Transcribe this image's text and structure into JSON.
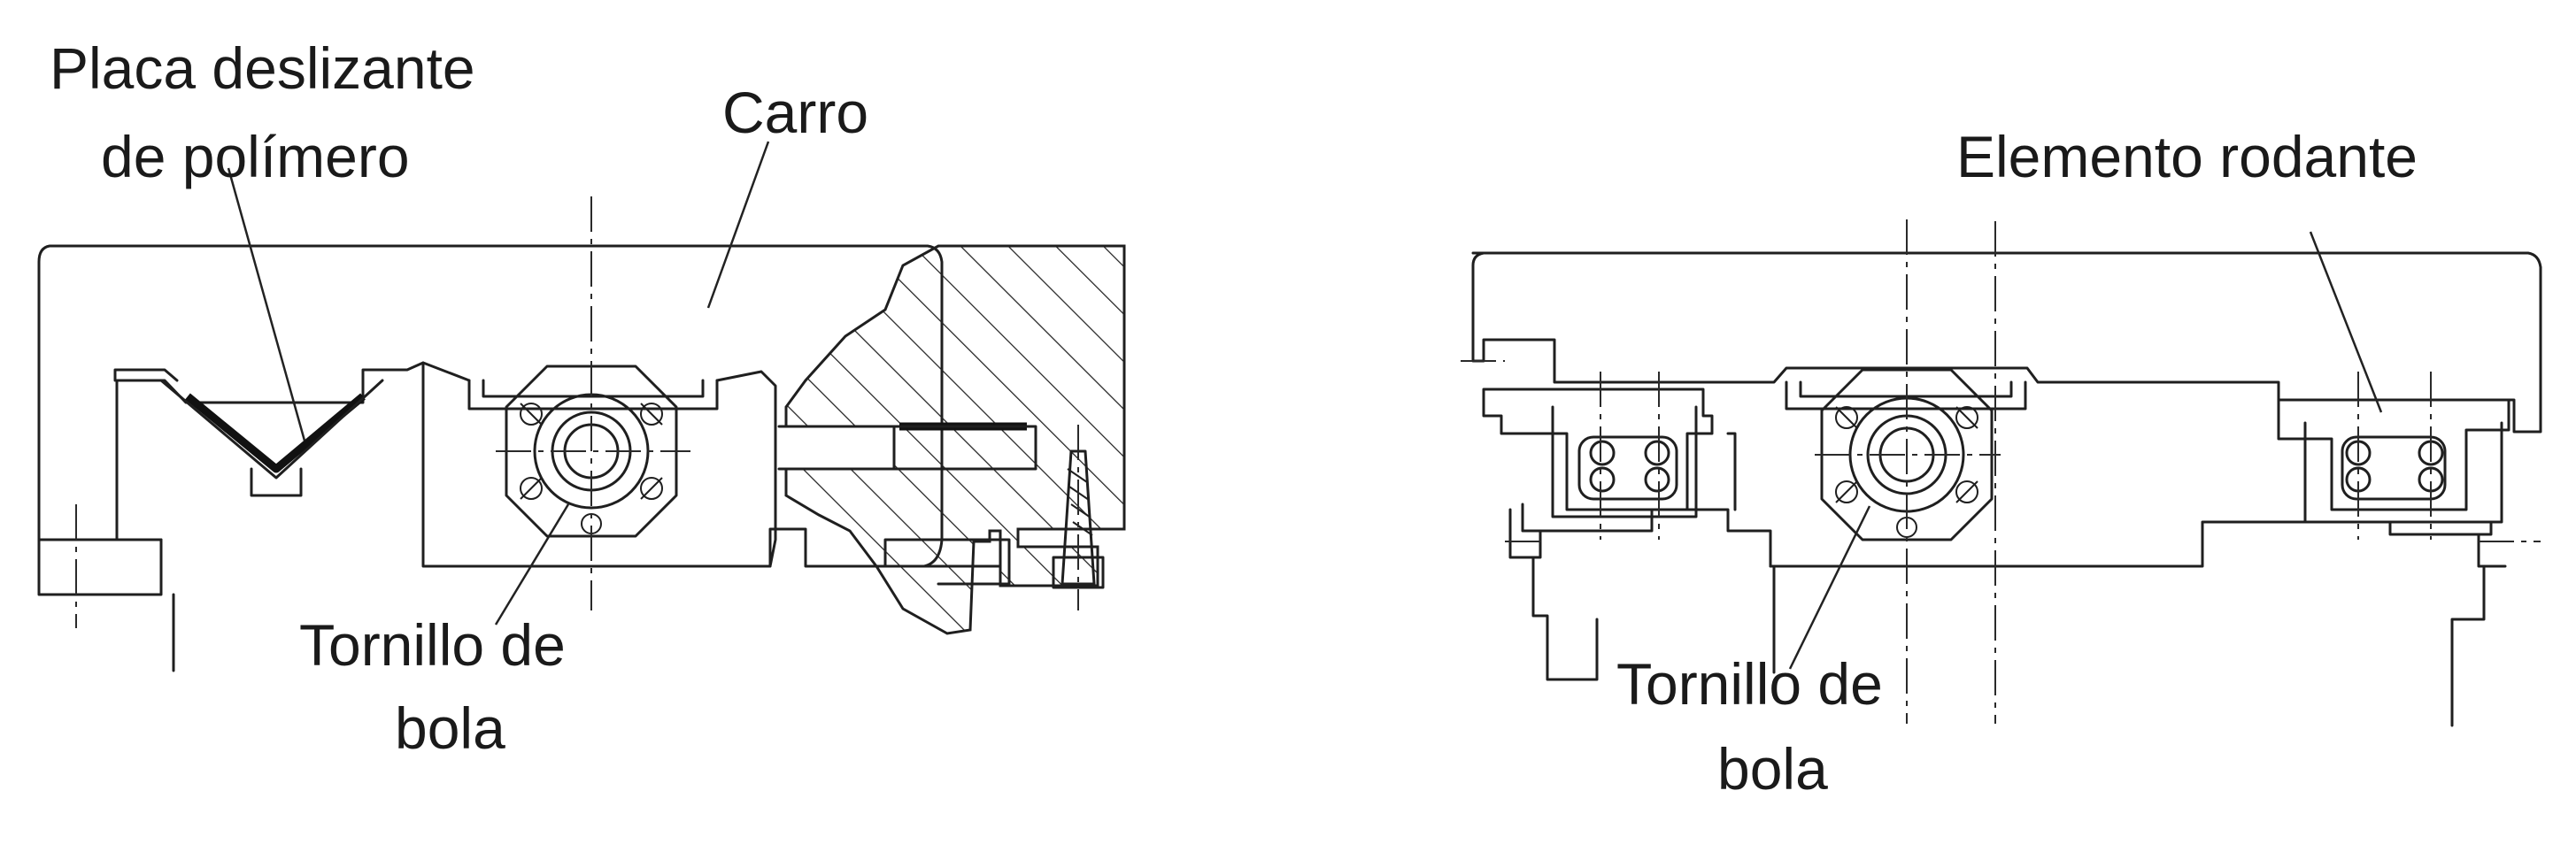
{
  "diagram": {
    "left": {
      "labels": {
        "slide_plate_line1": "Placa deslizante",
        "slide_plate_line2": "de polímero",
        "carriage": "Carro",
        "ball_screw_line1": "Tornillo de",
        "ball_screw_line2": "bola"
      }
    },
    "right": {
      "labels": {
        "rolling_element": "Elemento rodante",
        "ball_screw_line1": "Tornillo de",
        "ball_screw_line2": "bola"
      }
    }
  }
}
